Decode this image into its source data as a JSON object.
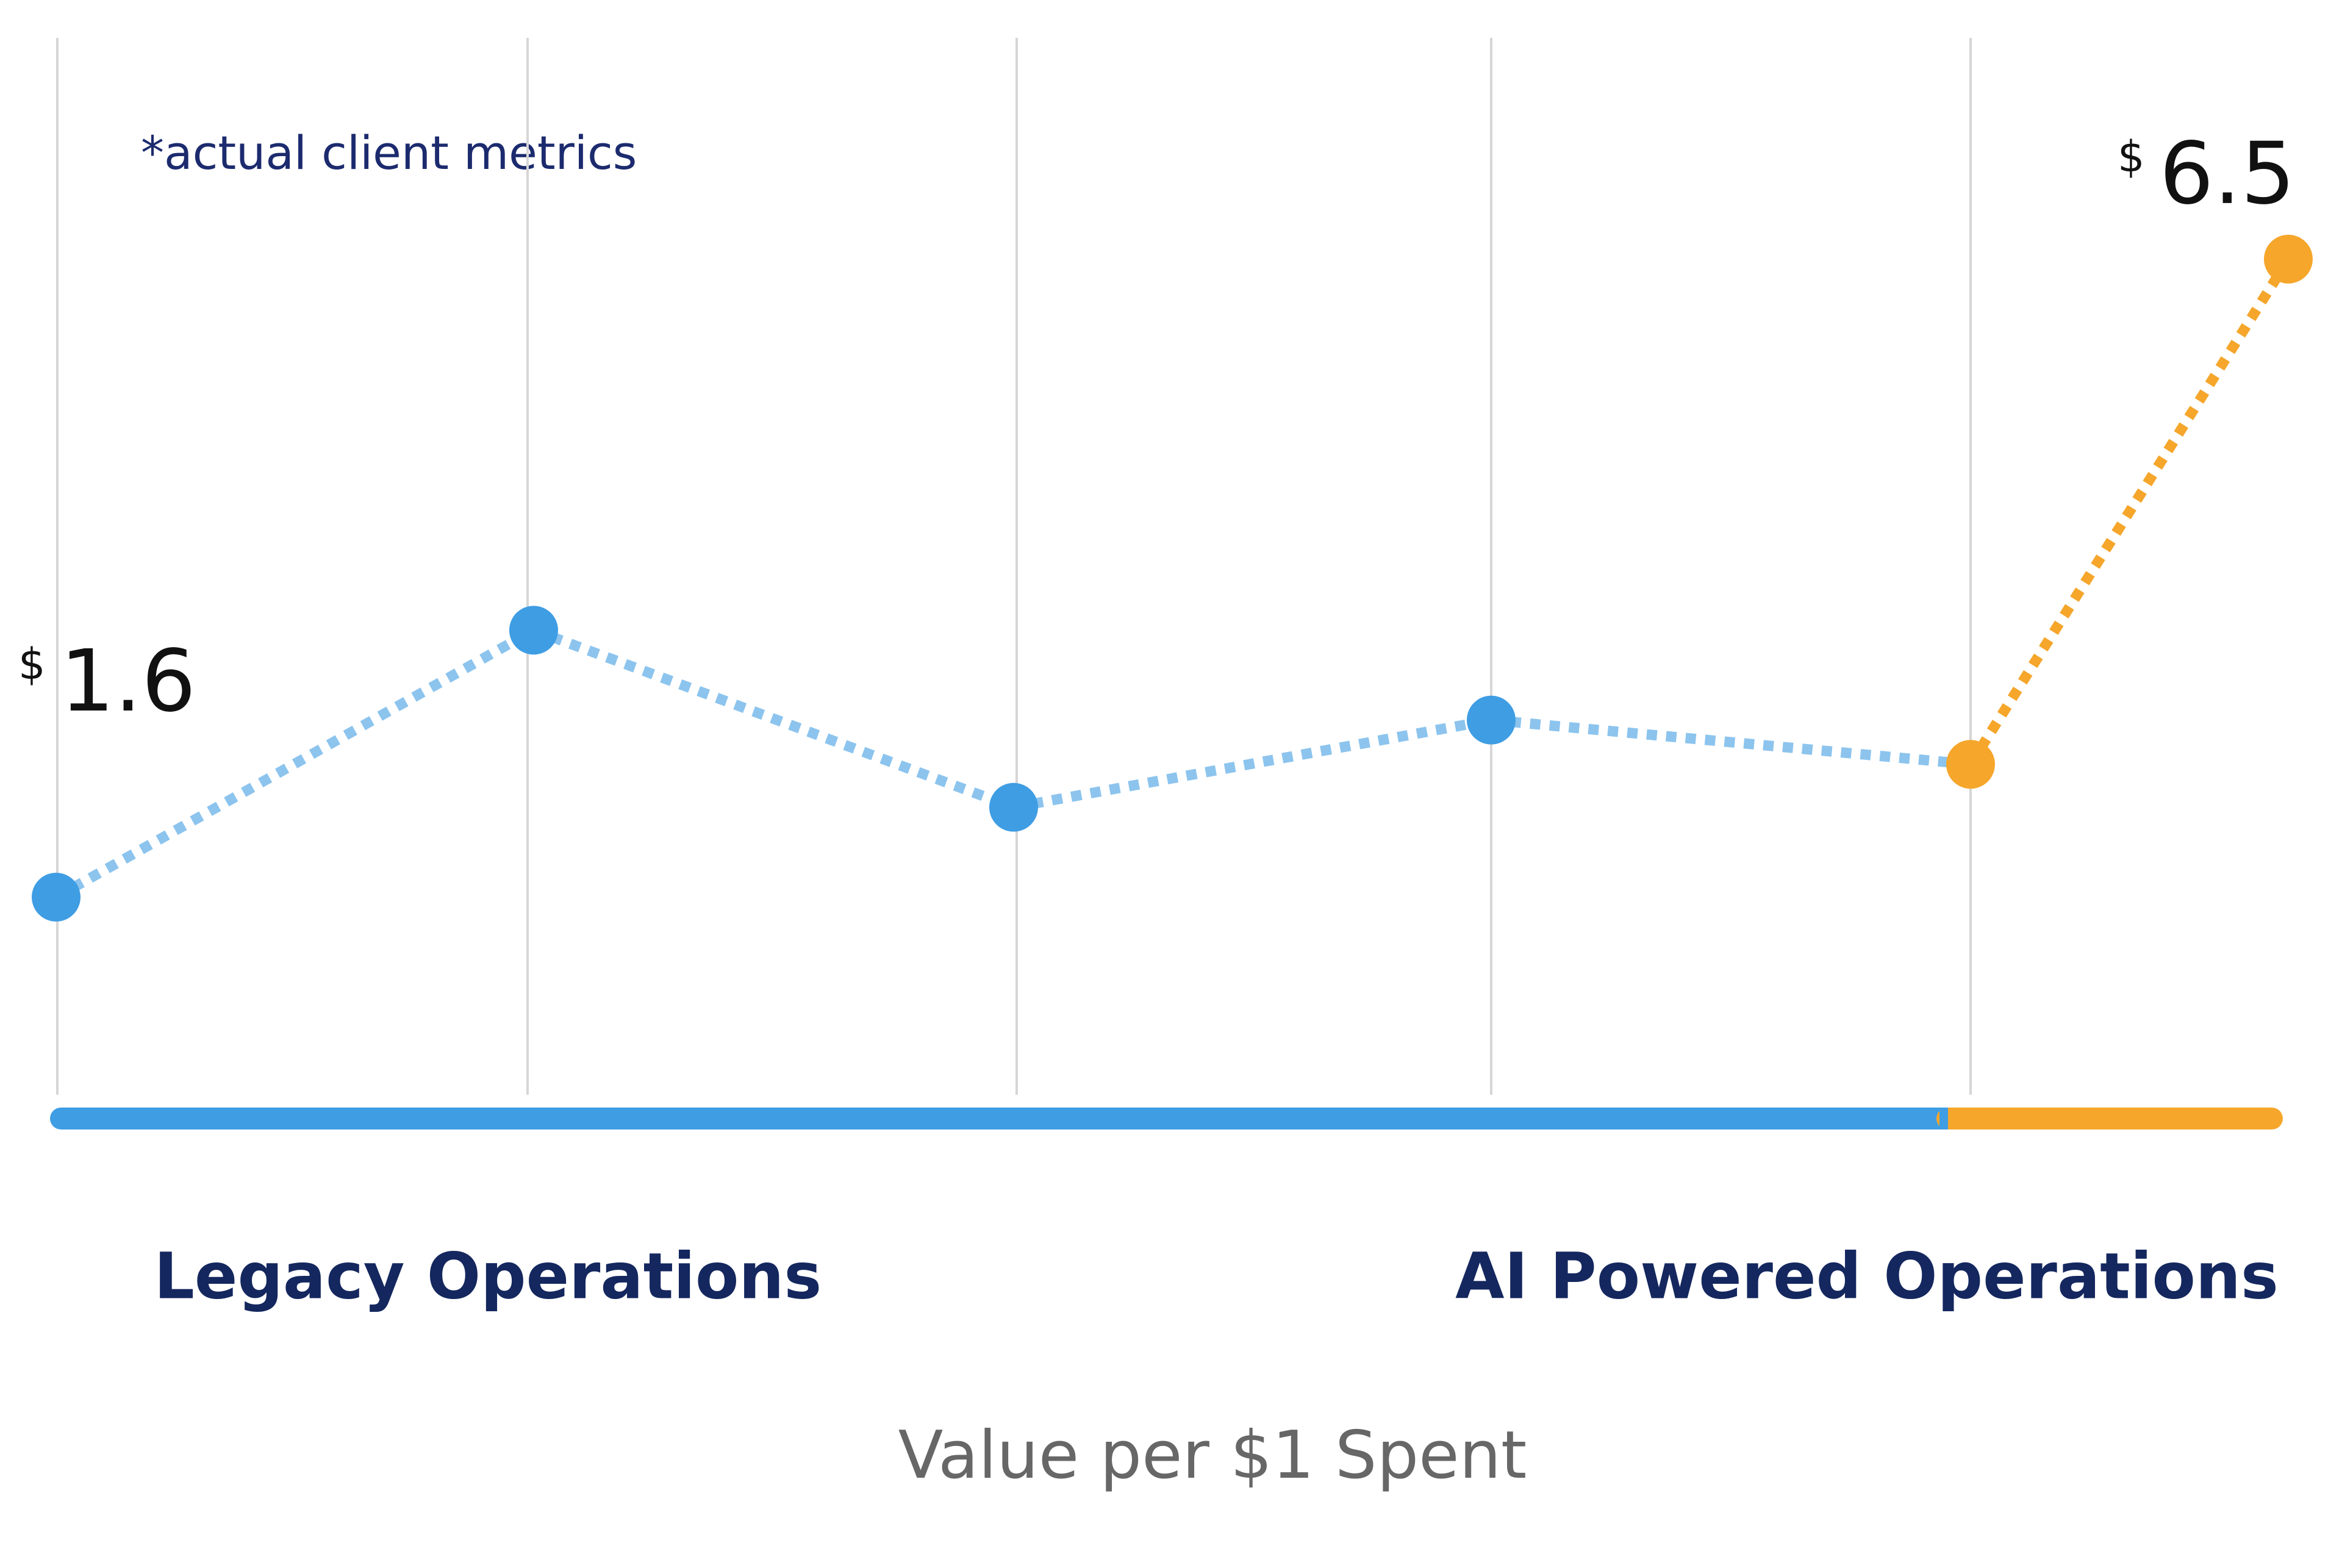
{
  "chart_data": {
    "type": "line",
    "annotation": "*actual client metrics",
    "x_label": "Value per $1 Spent",
    "x_group_labels": [
      "Legacy Operations",
      "AI Powered Operations"
    ],
    "categories": [
      null,
      null,
      null,
      null,
      null,
      null
    ],
    "values": [
      1.6,
      3.65,
      2.29,
      2.96,
      2.62,
      6.5
    ],
    "value_labels": [
      "$1.6",
      null,
      null,
      null,
      null,
      "$6.5"
    ],
    "colors": [
      "#3f9de3",
      "#3f9de3",
      "#3f9de3",
      "#3f9de3",
      "#f5a62b",
      "#f5a62b"
    ],
    "grid": true
  }
}
